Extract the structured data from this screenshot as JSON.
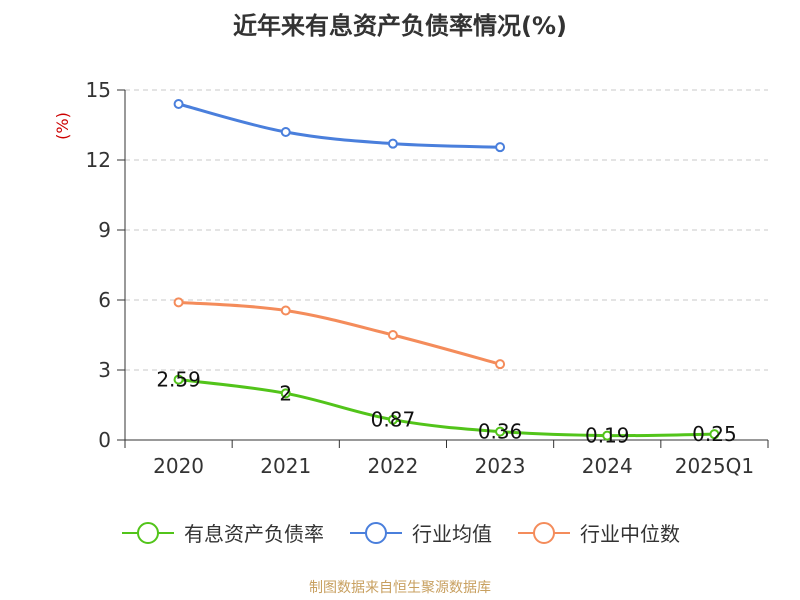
{
  "chart_data": {
    "type": "line",
    "title": "近年来有息资产负债率情况(%)",
    "ylabel": "(%)",
    "xlabel": "",
    "ylim": [
      0,
      15
    ],
    "yticks": [
      "0",
      "3",
      "6",
      "9",
      "12",
      "15"
    ],
    "categories": [
      "2020",
      "2021",
      "2022",
      "2023",
      "2024",
      "2025Q1"
    ],
    "grid": true,
    "legend_position": "bottom",
    "series": [
      {
        "name": "有息资产负债率",
        "color": "#52c41a",
        "values": [
          2.59,
          2.0,
          0.87,
          0.36,
          0.19,
          0.25
        ],
        "labels": [
          "2.59",
          "2",
          "0.87",
          "0.36",
          "0.19",
          "0.25"
        ]
      },
      {
        "name": "行业均值",
        "color": "#4a7fdc",
        "values": [
          14.4,
          13.2,
          12.7,
          12.55,
          null,
          null
        ]
      },
      {
        "name": "行业中位数",
        "color": "#f48c5b",
        "values": [
          5.9,
          5.55,
          4.5,
          3.25,
          null,
          null
        ]
      }
    ]
  },
  "footer": "制图数据来自恒生聚源数据库"
}
